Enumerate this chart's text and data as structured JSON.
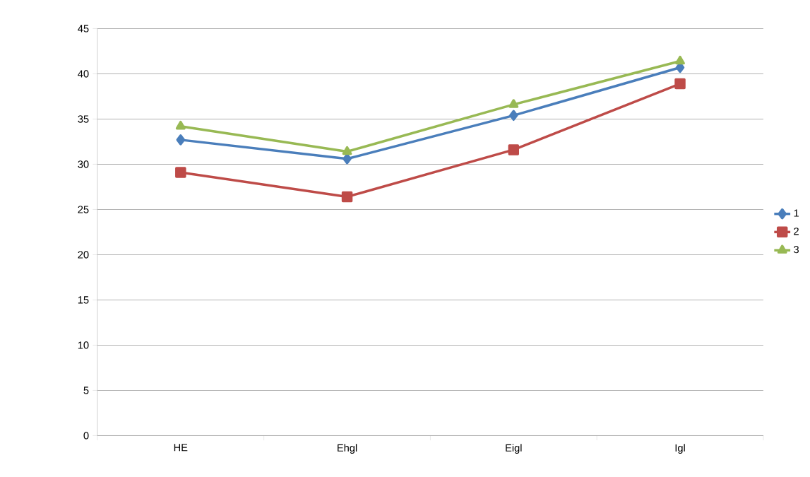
{
  "chart_data": {
    "type": "line",
    "categories": [
      "HE",
      "Ehgl",
      "Eigl",
      "Igl"
    ],
    "series": [
      {
        "name": "1",
        "color": "#4a7ebb",
        "marker": "diamond",
        "values": [
          32.7,
          30.6,
          35.4,
          40.7
        ]
      },
      {
        "name": "2",
        "color": "#be4b48",
        "marker": "square",
        "values": [
          29.1,
          26.4,
          31.6,
          38.9
        ]
      },
      {
        "name": "3",
        "color": "#98b954",
        "marker": "triangle",
        "values": [
          34.2,
          31.4,
          36.6,
          41.4
        ]
      }
    ],
    "ylim": [
      0,
      45
    ],
    "yticks": [
      0,
      5,
      10,
      15,
      20,
      25,
      30,
      35,
      40,
      45
    ],
    "grid": "y",
    "legend": "right"
  }
}
